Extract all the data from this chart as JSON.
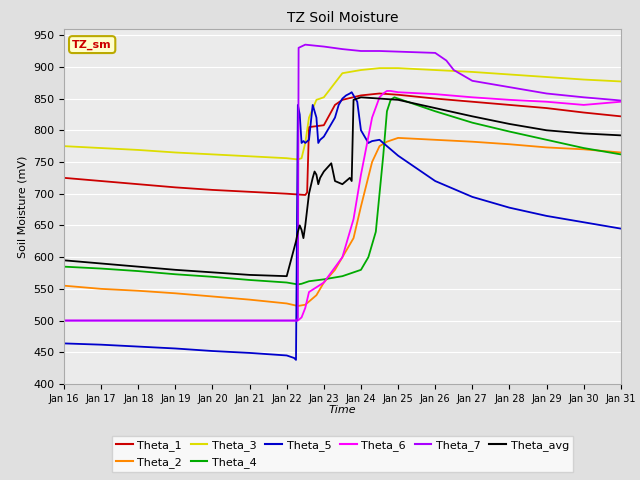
{
  "title": "TZ Soil Moisture",
  "xlabel": "Time",
  "ylabel": "Soil Moisture (mV)",
  "ylim": [
    400,
    960
  ],
  "xlim": [
    0,
    15
  ],
  "xtick_labels": [
    "Jan 16",
    "Jan 17",
    "Jan 18",
    "Jan 19",
    "Jan 20",
    "Jan 21",
    "Jan 22",
    "Jan 23",
    "Jan 24",
    "Jan 25",
    "Jan 26",
    "Jan 27",
    "Jan 28",
    "Jan 29",
    "Jan 30",
    "Jan 31"
  ],
  "ytick_values": [
    400,
    450,
    500,
    550,
    600,
    650,
    700,
    750,
    800,
    850,
    900,
    950
  ],
  "background_color": "#e0e0e0",
  "plot_bg_color": "#ebebeb",
  "grid_color": "#ffffff",
  "legend_label": "TZ_sm",
  "legend_bg": "#ffffcc",
  "legend_border": "#bbaa00",
  "legend_text_color": "#cc0000",
  "series": {
    "Theta_1": {
      "color": "#cc0000",
      "points": [
        [
          0,
          725
        ],
        [
          1,
          720
        ],
        [
          2,
          715
        ],
        [
          3,
          710
        ],
        [
          4,
          706
        ],
        [
          5,
          703
        ],
        [
          6,
          700
        ],
        [
          6.5,
          698
        ],
        [
          6.55,
          702
        ],
        [
          6.6,
          805
        ],
        [
          7,
          808
        ],
        [
          7.3,
          840
        ],
        [
          7.5,
          848
        ],
        [
          8,
          855
        ],
        [
          8.5,
          858
        ],
        [
          9,
          856
        ],
        [
          10,
          850
        ],
        [
          11,
          845
        ],
        [
          12,
          840
        ],
        [
          13,
          835
        ],
        [
          14,
          828
        ],
        [
          15,
          822
        ]
      ]
    },
    "Theta_2": {
      "color": "#ff8800",
      "points": [
        [
          0,
          555
        ],
        [
          1,
          550
        ],
        [
          2,
          547
        ],
        [
          3,
          543
        ],
        [
          4,
          538
        ],
        [
          5,
          533
        ],
        [
          6,
          527
        ],
        [
          6.3,
          523
        ],
        [
          6.5,
          525
        ],
        [
          6.8,
          540
        ],
        [
          7,
          560
        ],
        [
          7.3,
          580
        ],
        [
          7.5,
          600
        ],
        [
          7.8,
          630
        ],
        [
          8,
          680
        ],
        [
          8.3,
          750
        ],
        [
          8.5,
          775
        ],
        [
          8.7,
          782
        ],
        [
          9,
          788
        ],
        [
          10,
          785
        ],
        [
          11,
          782
        ],
        [
          12,
          778
        ],
        [
          13,
          773
        ],
        [
          14,
          770
        ],
        [
          15,
          765
        ]
      ]
    },
    "Theta_3": {
      "color": "#dddd00",
      "points": [
        [
          0,
          775
        ],
        [
          1,
          772
        ],
        [
          2,
          769
        ],
        [
          3,
          765
        ],
        [
          4,
          762
        ],
        [
          5,
          759
        ],
        [
          6,
          756
        ],
        [
          6.3,
          754
        ],
        [
          6.4,
          756
        ],
        [
          6.5,
          780
        ],
        [
          6.6,
          820
        ],
        [
          6.8,
          848
        ],
        [
          7,
          852
        ],
        [
          7.5,
          890
        ],
        [
          8,
          895
        ],
        [
          8.5,
          898
        ],
        [
          9,
          898
        ],
        [
          10,
          895
        ],
        [
          11,
          892
        ],
        [
          12,
          888
        ],
        [
          13,
          884
        ],
        [
          14,
          880
        ],
        [
          15,
          877
        ]
      ]
    },
    "Theta_4": {
      "color": "#00aa00",
      "points": [
        [
          0,
          585
        ],
        [
          1,
          582
        ],
        [
          2,
          578
        ],
        [
          3,
          573
        ],
        [
          4,
          569
        ],
        [
          5,
          564
        ],
        [
          6,
          560
        ],
        [
          6.3,
          557
        ],
        [
          6.4,
          558
        ],
        [
          6.5,
          560
        ],
        [
          6.6,
          562
        ],
        [
          7,
          565
        ],
        [
          7.3,
          568
        ],
        [
          7.5,
          570
        ],
        [
          8,
          580
        ],
        [
          8.2,
          600
        ],
        [
          8.4,
          640
        ],
        [
          8.6,
          760
        ],
        [
          8.7,
          830
        ],
        [
          8.8,
          848
        ],
        [
          8.9,
          852
        ],
        [
          9,
          850
        ],
        [
          10,
          830
        ],
        [
          11,
          812
        ],
        [
          12,
          798
        ],
        [
          13,
          785
        ],
        [
          14,
          772
        ],
        [
          15,
          762
        ]
      ]
    },
    "Theta_5": {
      "color": "#0000cc",
      "points": [
        [
          0,
          464
        ],
        [
          1,
          462
        ],
        [
          2,
          459
        ],
        [
          3,
          456
        ],
        [
          4,
          452
        ],
        [
          5,
          449
        ],
        [
          5.5,
          447
        ],
        [
          6,
          445
        ],
        [
          6.1,
          443
        ],
        [
          6.2,
          441
        ],
        [
          6.25,
          438
        ],
        [
          6.3,
          840
        ],
        [
          6.35,
          825
        ],
        [
          6.4,
          780
        ],
        [
          6.45,
          783
        ],
        [
          6.5,
          780
        ],
        [
          6.6,
          785
        ],
        [
          6.7,
          840
        ],
        [
          6.8,
          820
        ],
        [
          6.85,
          780
        ],
        [
          6.9,
          785
        ],
        [
          7.0,
          790
        ],
        [
          7.1,
          800
        ],
        [
          7.2,
          810
        ],
        [
          7.3,
          820
        ],
        [
          7.4,
          840
        ],
        [
          7.5,
          850
        ],
        [
          7.6,
          855
        ],
        [
          7.7,
          858
        ],
        [
          7.75,
          860
        ],
        [
          7.8,
          855
        ],
        [
          7.85,
          850
        ],
        [
          7.9,
          845
        ],
        [
          8.0,
          800
        ],
        [
          8.2,
          780
        ],
        [
          8.3,
          783
        ],
        [
          8.5,
          785
        ],
        [
          9,
          760
        ],
        [
          10,
          720
        ],
        [
          11,
          695
        ],
        [
          12,
          678
        ],
        [
          13,
          665
        ],
        [
          14,
          655
        ],
        [
          15,
          645
        ]
      ]
    },
    "Theta_6": {
      "color": "#ff00ff",
      "points": [
        [
          0,
          500
        ],
        [
          1,
          500
        ],
        [
          2,
          500
        ],
        [
          3,
          500
        ],
        [
          4,
          500
        ],
        [
          5,
          500
        ],
        [
          6,
          500
        ],
        [
          6.3,
          500
        ],
        [
          6.4,
          505
        ],
        [
          6.5,
          520
        ],
        [
          6.6,
          545
        ],
        [
          7,
          560
        ],
        [
          7.5,
          600
        ],
        [
          7.8,
          660
        ],
        [
          8.0,
          730
        ],
        [
          8.3,
          820
        ],
        [
          8.5,
          852
        ],
        [
          8.6,
          858
        ],
        [
          8.7,
          862
        ],
        [
          8.8,
          862
        ],
        [
          9,
          860
        ],
        [
          10,
          857
        ],
        [
          11,
          852
        ],
        [
          12,
          848
        ],
        [
          13,
          845
        ],
        [
          14,
          840
        ],
        [
          15,
          845
        ]
      ]
    },
    "Theta_7": {
      "color": "#aa00ff",
      "points": [
        [
          0,
          500
        ],
        [
          1,
          500
        ],
        [
          2,
          500
        ],
        [
          3,
          500
        ],
        [
          4,
          500
        ],
        [
          5,
          500
        ],
        [
          6,
          500
        ],
        [
          6.28,
          500
        ],
        [
          6.3,
          505
        ],
        [
          6.32,
          930
        ],
        [
          6.5,
          935
        ],
        [
          7,
          932
        ],
        [
          7.5,
          928
        ],
        [
          8,
          925
        ],
        [
          8.5,
          925
        ],
        [
          9,
          924
        ],
        [
          10,
          922
        ],
        [
          10.3,
          910
        ],
        [
          10.5,
          895
        ],
        [
          11,
          878
        ],
        [
          12,
          868
        ],
        [
          13,
          858
        ],
        [
          14,
          852
        ],
        [
          15,
          847
        ]
      ]
    },
    "Theta_avg": {
      "color": "#000000",
      "points": [
        [
          0,
          595
        ],
        [
          1,
          590
        ],
        [
          2,
          585
        ],
        [
          3,
          580
        ],
        [
          4,
          576
        ],
        [
          5,
          572
        ],
        [
          6,
          570
        ],
        [
          6.25,
          625
        ],
        [
          6.3,
          640
        ],
        [
          6.35,
          650
        ],
        [
          6.4,
          643
        ],
        [
          6.45,
          630
        ],
        [
          6.5,
          650
        ],
        [
          6.6,
          700
        ],
        [
          6.7,
          725
        ],
        [
          6.75,
          735
        ],
        [
          6.8,
          730
        ],
        [
          6.85,
          715
        ],
        [
          6.9,
          725
        ],
        [
          7.0,
          735
        ],
        [
          7.2,
          748
        ],
        [
          7.3,
          720
        ],
        [
          7.5,
          715
        ],
        [
          7.6,
          720
        ],
        [
          7.7,
          725
        ],
        [
          7.75,
          720
        ],
        [
          7.8,
          848
        ],
        [
          8.0,
          852
        ],
        [
          8.5,
          850
        ],
        [
          9,
          848
        ],
        [
          10,
          835
        ],
        [
          11,
          822
        ],
        [
          12,
          810
        ],
        [
          13,
          800
        ],
        [
          14,
          795
        ],
        [
          15,
          792
        ]
      ]
    }
  }
}
